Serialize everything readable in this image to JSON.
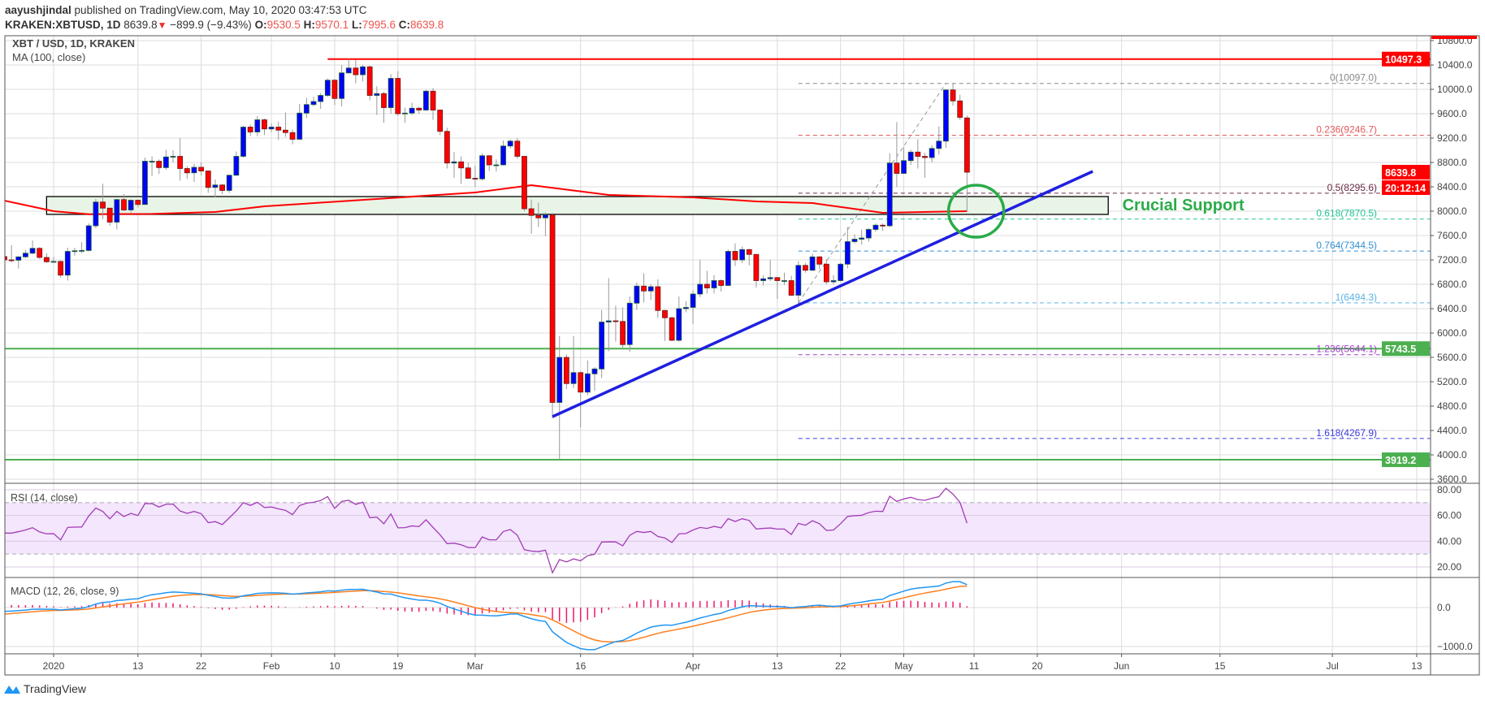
{
  "header": {
    "author": "aayushjindal",
    "published": "published on TradingView.com, May 10, 2020 03:47:53 UTC",
    "symbol": "KRAKEN:XBTUSD, 1D",
    "last": "8639.8",
    "change": "−899.9 (−9.43%)",
    "o_label": "O:",
    "o": "9530.5",
    "h_label": "H:",
    "h": "9570.1",
    "l_label": "L:",
    "l": "7995.6",
    "c_label": "C:",
    "c": "8639.8"
  },
  "footer": {
    "brand": "TradingView"
  },
  "colors": {
    "up": "#0000ff",
    "down": "#ff0000",
    "ma": "#ff0000",
    "rsi": "#a33cb5",
    "macd": "#2196f3",
    "signal": "#ff7f1e",
    "hist": "#f0186a",
    "support_text": "#2aab48"
  },
  "chart_data": {
    "type": "candlestick",
    "title": "XBT / USD, 1D, KRAKEN",
    "ylim": [
      3600,
      10800
    ],
    "y_ticks": [
      3600,
      4000,
      4400,
      4800,
      5200,
      5600,
      6000,
      6400,
      6800,
      7200,
      7600,
      8000,
      8400,
      8800,
      9200,
      9600,
      10000,
      10400,
      10800
    ],
    "x_ticks": [
      {
        "label": "2020",
        "day": 7
      },
      {
        "label": "13",
        "day": 19
      },
      {
        "label": "22",
        "day": 28
      },
      {
        "label": "Feb",
        "day": 38
      },
      {
        "label": "10",
        "day": 47
      },
      {
        "label": "19",
        "day": 56
      },
      {
        "label": "Mar",
        "day": 67
      },
      {
        "label": "16",
        "day": 82
      },
      {
        "label": "Apr",
        "day": 98
      },
      {
        "label": "13",
        "day": 110
      },
      {
        "label": "22",
        "day": 119
      },
      {
        "label": "May",
        "day": 128
      },
      {
        "label": "11",
        "day": 138
      },
      {
        "label": "20",
        "day": 147
      },
      {
        "label": "Jun",
        "day": 159
      },
      {
        "label": "15",
        "day": 173
      },
      {
        "label": "Jul",
        "day": 189
      },
      {
        "label": "13",
        "day": 201
      }
    ],
    "candles": [
      [
        7255,
        7270,
        7130,
        7200
      ],
      [
        7200,
        7440,
        7160,
        7195
      ],
      [
        7195,
        7260,
        7060,
        7250
      ],
      [
        7250,
        7360,
        7230,
        7310
      ],
      [
        7310,
        7520,
        7290,
        7390
      ],
      [
        7390,
        7410,
        7220,
        7240
      ],
      [
        7240,
        7310,
        7150,
        7170
      ],
      [
        7170,
        7250,
        7150,
        7175
      ],
      [
        7175,
        7190,
        6910,
        6950
      ],
      [
        6950,
        7400,
        6860,
        7340
      ],
      [
        7340,
        7400,
        7270,
        7350
      ],
      [
        7350,
        7490,
        7310,
        7355
      ],
      [
        7355,
        7800,
        7340,
        7760
      ],
      [
        7760,
        8200,
        7720,
        8150
      ],
      [
        8150,
        8450,
        7870,
        8050
      ],
      [
        8050,
        8050,
        7760,
        7820
      ],
      [
        7820,
        8200,
        7700,
        8190
      ],
      [
        8190,
        8280,
        8000,
        8020
      ],
      [
        8020,
        8190,
        7980,
        8180
      ],
      [
        8180,
        8190,
        8060,
        8110
      ],
      [
        8110,
        8880,
        8110,
        8820
      ],
      [
        8820,
        8900,
        8580,
        8820
      ],
      [
        8820,
        8850,
        8610,
        8715
      ],
      [
        8715,
        9010,
        8680,
        8890
      ],
      [
        8890,
        9000,
        8800,
        8900
      ],
      [
        8900,
        9200,
        8500,
        8700
      ],
      [
        8700,
        8740,
        8530,
        8630
      ],
      [
        8630,
        8780,
        8480,
        8720
      ],
      [
        8720,
        8800,
        8590,
        8660
      ],
      [
        8660,
        8660,
        8300,
        8390
      ],
      [
        8390,
        8520,
        8230,
        8430
      ],
      [
        8430,
        8440,
        8280,
        8340
      ],
      [
        8340,
        8600,
        8300,
        8590
      ],
      [
        8590,
        8980,
        8580,
        8900
      ],
      [
        8900,
        9400,
        8880,
        9380
      ],
      [
        9380,
        9420,
        9230,
        9300
      ],
      [
        9300,
        9560,
        9230,
        9500
      ],
      [
        9500,
        9520,
        9250,
        9350
      ],
      [
        9350,
        9440,
        9300,
        9380
      ],
      [
        9380,
        9470,
        9170,
        9330
      ],
      [
        9330,
        9620,
        9220,
        9290
      ],
      [
        9290,
        9340,
        9100,
        9180
      ],
      [
        9180,
        9760,
        9170,
        9610
      ],
      [
        9610,
        9860,
        9530,
        9750
      ],
      [
        9750,
        9880,
        9720,
        9800
      ],
      [
        9800,
        9940,
        9680,
        9900
      ],
      [
        9900,
        10180,
        9880,
        10150
      ],
      [
        10150,
        10170,
        9740,
        9850
      ],
      [
        9850,
        10400,
        9720,
        10270
      ],
      [
        10270,
        10497,
        10260,
        10350
      ],
      [
        10350,
        10480,
        10100,
        10240
      ],
      [
        10240,
        10400,
        10130,
        10370
      ],
      [
        10370,
        10390,
        9820,
        9900
      ],
      [
        9900,
        10050,
        9580,
        9930
      ],
      [
        9930,
        9960,
        9450,
        9700
      ],
      [
        9700,
        10250,
        9600,
        10180
      ],
      [
        10180,
        10300,
        9570,
        9600
      ],
      [
        9600,
        9700,
        9450,
        9610
      ],
      [
        9610,
        9780,
        9580,
        9690
      ],
      [
        9690,
        9710,
        9600,
        9660
      ],
      [
        9660,
        9990,
        9650,
        9970
      ],
      [
        9970,
        10020,
        9500,
        9660
      ],
      [
        9660,
        9670,
        9250,
        9310
      ],
      [
        9310,
        9370,
        8700,
        8790
      ],
      [
        8790,
        8970,
        8550,
        8810
      ],
      [
        8810,
        8900,
        8450,
        8710
      ],
      [
        8710,
        8800,
        8530,
        8540
      ],
      [
        8540,
        8750,
        8400,
        8530
      ],
      [
        8530,
        8950,
        8500,
        8910
      ],
      [
        8910,
        8920,
        8660,
        8760
      ],
      [
        8760,
        8850,
        8650,
        8760
      ],
      [
        8760,
        9160,
        8750,
        9070
      ],
      [
        9070,
        9180,
        9030,
        9150
      ],
      [
        9150,
        9200,
        8860,
        8900
      ],
      [
        8900,
        8900,
        8000,
        8040
      ],
      [
        8040,
        8190,
        7630,
        7930
      ],
      [
        7930,
        8140,
        7740,
        7890
      ],
      [
        7890,
        7980,
        7590,
        7940
      ],
      [
        7940,
        7970,
        4600,
        4860
      ],
      [
        4860,
        5950,
        3919.2,
        5600
      ],
      [
        5600,
        5650,
        5080,
        5170
      ],
      [
        5170,
        5950,
        5100,
        5350
      ],
      [
        5350,
        5370,
        4450,
        5030
      ],
      [
        5030,
        5550,
        4980,
        5330
      ],
      [
        5330,
        5440,
        5050,
        5410
      ],
      [
        5410,
        6380,
        5260,
        6180
      ],
      [
        6180,
        6900,
        5700,
        6200
      ],
      [
        6200,
        6450,
        5860,
        6190
      ],
      [
        6190,
        6420,
        5760,
        5810
      ],
      [
        5810,
        6600,
        5690,
        6490
      ],
      [
        6490,
        6830,
        6380,
        6770
      ],
      [
        6770,
        6980,
        6500,
        6690
      ],
      [
        6690,
        6800,
        6540,
        6760
      ],
      [
        6760,
        6880,
        6250,
        6370
      ],
      [
        6370,
        6380,
        5870,
        6250
      ],
      [
        6250,
        6270,
        5870,
        5880
      ],
      [
        5880,
        6600,
        5860,
        6400
      ],
      [
        6400,
        6520,
        6340,
        6420
      ],
      [
        6420,
        6700,
        6150,
        6640
      ],
      [
        6640,
        7200,
        6590,
        6800
      ],
      [
        6800,
        7020,
        6650,
        6740
      ],
      [
        6740,
        6950,
        6650,
        6860
      ],
      [
        6860,
        6880,
        6680,
        6780
      ],
      [
        6780,
        7370,
        6770,
        7340
      ],
      [
        7340,
        7470,
        7100,
        7200
      ],
      [
        7200,
        7420,
        7150,
        7370
      ],
      [
        7370,
        7380,
        7110,
        7290
      ],
      [
        7290,
        7300,
        6750,
        6860
      ],
      [
        6860,
        6950,
        6780,
        6890
      ],
      [
        6890,
        7200,
        6850,
        6910
      ],
      [
        6910,
        6920,
        6560,
        6860
      ],
      [
        6860,
        6990,
        6790,
        6860
      ],
      [
        6860,
        6940,
        6610,
        6620
      ],
      [
        6620,
        7180,
        6470,
        7110
      ],
      [
        7110,
        7150,
        6990,
        7030
      ],
      [
        7030,
        7300,
        7020,
        7250
      ],
      [
        7250,
        7260,
        7050,
        7130
      ],
      [
        7130,
        7210,
        6800,
        6840
      ],
      [
        6840,
        6950,
        6800,
        6860
      ],
      [
        6860,
        7150,
        6850,
        7130
      ],
      [
        7130,
        7740,
        7060,
        7500
      ],
      [
        7500,
        7620,
        7470,
        7540
      ],
      [
        7540,
        7700,
        7450,
        7560
      ],
      [
        7560,
        7720,
        7500,
        7700
      ],
      [
        7700,
        7800,
        7660,
        7770
      ],
      [
        7770,
        7800,
        7680,
        7760
      ],
      [
        7760,
        8950,
        7740,
        8790
      ],
      [
        8790,
        9460,
        8400,
        8620
      ],
      [
        8620,
        9050,
        8620,
        8830
      ],
      [
        8830,
        9010,
        8760,
        8970
      ],
      [
        8970,
        9180,
        8700,
        8900
      ],
      [
        8900,
        8960,
        8550,
        8880
      ],
      [
        8880,
        9080,
        8800,
        9030
      ],
      [
        9030,
        9390,
        8930,
        9150
      ],
      [
        9150,
        10000,
        9040,
        9990
      ],
      [
        9990,
        10097,
        9730,
        9810
      ],
      [
        9810,
        9910,
        9500,
        9540
      ],
      [
        9530.5,
        9570.1,
        7995.6,
        8639.8
      ]
    ],
    "ma": {
      "label": "MA (100, close)",
      "points": [
        [
          0,
          8173
        ],
        [
          7,
          8000
        ],
        [
          12,
          7950
        ],
        [
          21,
          7955
        ],
        [
          30,
          7987
        ],
        [
          37,
          8080
        ],
        [
          49,
          8170
        ],
        [
          67,
          8307
        ],
        [
          75,
          8427
        ],
        [
          86,
          8267
        ],
        [
          98,
          8227
        ],
        [
          107,
          8160
        ],
        [
          115,
          8133
        ],
        [
          125,
          7973
        ],
        [
          137,
          8000
        ]
      ]
    },
    "horizontal_lines": [
      {
        "value": 10497.3,
        "label": "10497.3",
        "color": "#ff0000",
        "from_day": 46
      },
      {
        "value": 5743.5,
        "label": "5743.5",
        "color": "#4caf50",
        "from_day": -1
      },
      {
        "value": 3919.2,
        "label": "3919.2",
        "color": "#4caf50",
        "from_day": -1
      }
    ],
    "price_tag": {
      "value": 8639.8,
      "label": "8639.8",
      "countdown": "20:12:14"
    },
    "fib": {
      "from": {
        "day": 113,
        "value": 6494.3
      },
      "to": {
        "day": 134,
        "value": 10097.0
      },
      "levels": [
        {
          "label": "0(10097.0)",
          "value": 10097.0,
          "color": "#888888"
        },
        {
          "label": "0.236(9246.7)",
          "value": 9246.7,
          "color": "#e05a5a"
        },
        {
          "label": "0.5(8295.6)",
          "value": 8295.6,
          "color": "#6b2a45"
        },
        {
          "label": "0.618(7870.5)",
          "value": 7870.5,
          "color": "#22c495"
        },
        {
          "label": "0.764(7344.5)",
          "value": 7344.5,
          "color": "#2f8fd6"
        },
        {
          "label": "1(6494.3)",
          "value": 6494.3,
          "color": "#5ab4e6"
        },
        {
          "label": "1.236(5644.1)",
          "value": 5644.1,
          "color": "#a03fc8"
        },
        {
          "label": "1.618(4267.9)",
          "value": 4267.9,
          "color": "#3b3be0"
        }
      ]
    },
    "trendline": {
      "from": [
        78,
        4627
      ],
      "to": [
        154.9,
        8653
      ],
      "color": "#1f1fe0"
    },
    "support_zone": {
      "from_day": 6,
      "to_day": 157.1,
      "low": 7947,
      "high": 8240,
      "label": "Crucial Support"
    },
    "highlight_circle": {
      "day": 138.3,
      "value": 8000,
      "color": "#2aab48"
    },
    "rsi": {
      "label": "RSI (14, close)",
      "period": 14,
      "band": [
        30,
        70
      ],
      "ylim": [
        10,
        85
      ],
      "ticks": [
        {
          "v": 80,
          "label": "80.00"
        },
        {
          "v": 60,
          "label": "60.00"
        },
        {
          "v": 40,
          "label": "40.00"
        },
        {
          "v": 20,
          "label": "20.00"
        }
      ]
    },
    "macd": {
      "label": "MACD (12, 26, close, 9)",
      "fast": 12,
      "slow": 26,
      "signal": 9,
      "ticks": [
        {
          "v": 0,
          "label": "0.0"
        },
        {
          "v": -1000,
          "label": "−1000.0"
        }
      ]
    }
  }
}
